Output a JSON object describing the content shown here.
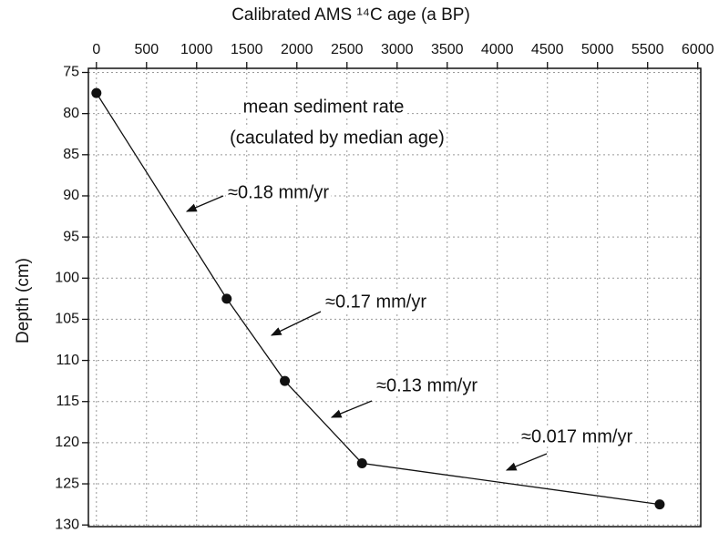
{
  "chart_data": {
    "type": "line",
    "x_label": "Calibrated AMS ¹⁴C age (a BP)",
    "y_label": "Depth (cm)",
    "x": [
      0,
      1300,
      1880,
      2650,
      5620
    ],
    "series": [
      {
        "name": null,
        "color": "#111111",
        "values": [
          77.5,
          102.5,
          112.5,
          122.5,
          127.5
        ]
      }
    ],
    "xlim": [
      -80,
      6030
    ],
    "ylim": [
      74.5,
      130.2
    ],
    "xticks": [
      0,
      500,
      1000,
      1500,
      2000,
      2500,
      3000,
      3500,
      4000,
      4500,
      5000,
      5500,
      6000
    ],
    "yticks": [
      75,
      80,
      85,
      90,
      95,
      100,
      105,
      110,
      115,
      120,
      125,
      130
    ],
    "y_inverted": true,
    "x_axis_position": "top",
    "grid": true,
    "annotations": [
      "mean sediment rate",
      "(caculated by median age)",
      "≈0.18 mm/yr",
      "≈0.17 mm/yr",
      "≈0.13 mm/yr",
      "≈0.017 mm/yr"
    ]
  }
}
